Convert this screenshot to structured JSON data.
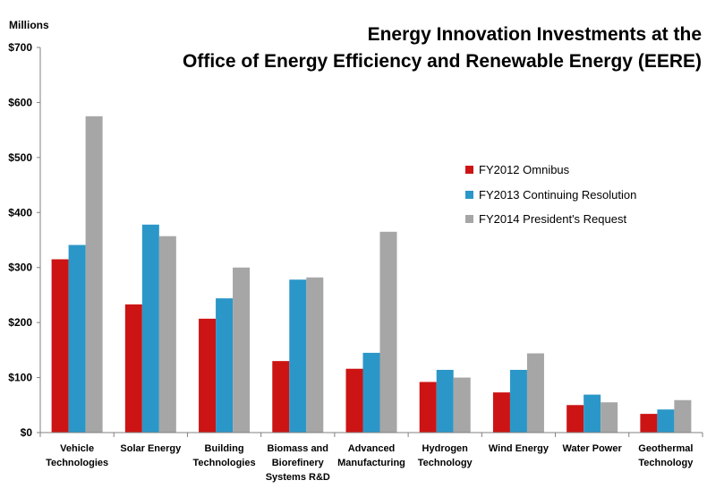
{
  "chart_data": {
    "type": "bar",
    "title_line1": "Energy Innovation Investments at the",
    "title_line2": "Office of Energy Efficiency and Renewable Energy (EERE)",
    "y_unit_label": "Millions",
    "ylim": [
      0,
      700
    ],
    "y_ticks": [
      "$0",
      "$100",
      "$200",
      "$300",
      "$400",
      "$500",
      "$600",
      "$700"
    ],
    "grid": false,
    "legend_position": "right",
    "categories": [
      "Vehicle\nTechnologies",
      "Solar Energy",
      "Building\nTechnologies",
      "Biomass and\nBiorefinery\nSystems R&D",
      "Advanced\nManufacturing",
      "Hydrogen\nTechnology",
      "Wind Energy",
      "Water Power",
      "Geothermal\nTechnology"
    ],
    "series": [
      {
        "name": "FY2012 Omnibus",
        "color": "#cc1414",
        "values": [
          315,
          233,
          207,
          130,
          116,
          92,
          73,
          50,
          34
        ]
      },
      {
        "name": "FY2013 Continuing Resolution",
        "color": "#2b97c8",
        "values": [
          341,
          378,
          244,
          278,
          145,
          114,
          114,
          69,
          42
        ]
      },
      {
        "name": "FY2014 President's Request",
        "color": "#a6a6a6",
        "values": [
          575,
          357,
          300,
          282,
          365,
          100,
          144,
          55,
          59
        ]
      }
    ]
  }
}
